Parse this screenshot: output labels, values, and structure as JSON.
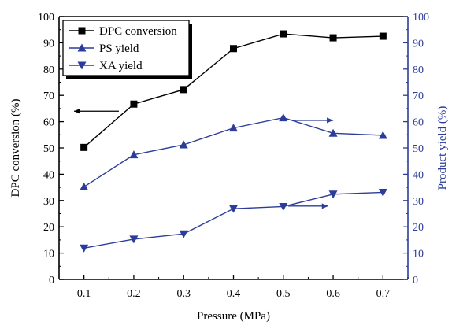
{
  "chart_data": {
    "type": "line",
    "xlabel": "Pressure (MPa)",
    "ylabel_left": "DPC conversion (%)",
    "ylabel_right": "Product yield (%)",
    "x": [
      0.1,
      0.2,
      0.3,
      0.4,
      0.5,
      0.6,
      0.7
    ],
    "x_ticks": [
      "0.1",
      "0.2",
      "0.3",
      "0.4",
      "0.5",
      "0.6",
      "0.7"
    ],
    "xlim": [
      0.05,
      0.75
    ],
    "ylim_left": [
      0,
      100
    ],
    "ylim_right": [
      0,
      100
    ],
    "y_ticks": [
      "0",
      "10",
      "20",
      "30",
      "40",
      "50",
      "60",
      "70",
      "80",
      "90",
      "100"
    ],
    "grid": false,
    "legend_position": "top-left",
    "series": [
      {
        "name": "DPC conversion",
        "axis": "left",
        "marker": "square",
        "color": "#000000",
        "values": [
          50.2,
          66.7,
          72.2,
          87.8,
          93.4,
          91.9,
          92.5
        ]
      },
      {
        "name": "PS yield",
        "axis": "right",
        "marker": "triangle-up",
        "color": "#2c3c9a",
        "values": [
          35.2,
          47.4,
          51.2,
          57.6,
          61.5,
          55.6,
          54.8
        ]
      },
      {
        "name": "XA yield",
        "axis": "right",
        "marker": "triangle-down",
        "color": "#2c3c9a",
        "values": [
          11.9,
          15.3,
          17.3,
          26.9,
          27.7,
          32.4,
          33.1
        ]
      }
    ],
    "annotations": [
      {
        "type": "arrow",
        "direction": "left",
        "target_axis": "left",
        "color": "#000000",
        "x_from": 0.17,
        "x_to": 0.08,
        "y": 64
      },
      {
        "type": "arrow",
        "direction": "right",
        "target_axis": "right",
        "color": "#2c3c9a",
        "x_from": 0.52,
        "x_to": 0.6,
        "y": 60.5
      },
      {
        "type": "arrow",
        "direction": "right",
        "target_axis": "right",
        "color": "#2c3c9a",
        "x_from": 0.51,
        "x_to": 0.59,
        "y": 27.9
      }
    ],
    "colors": {
      "left_axis": "#000000",
      "right_axis": "#2c3c9a"
    }
  }
}
